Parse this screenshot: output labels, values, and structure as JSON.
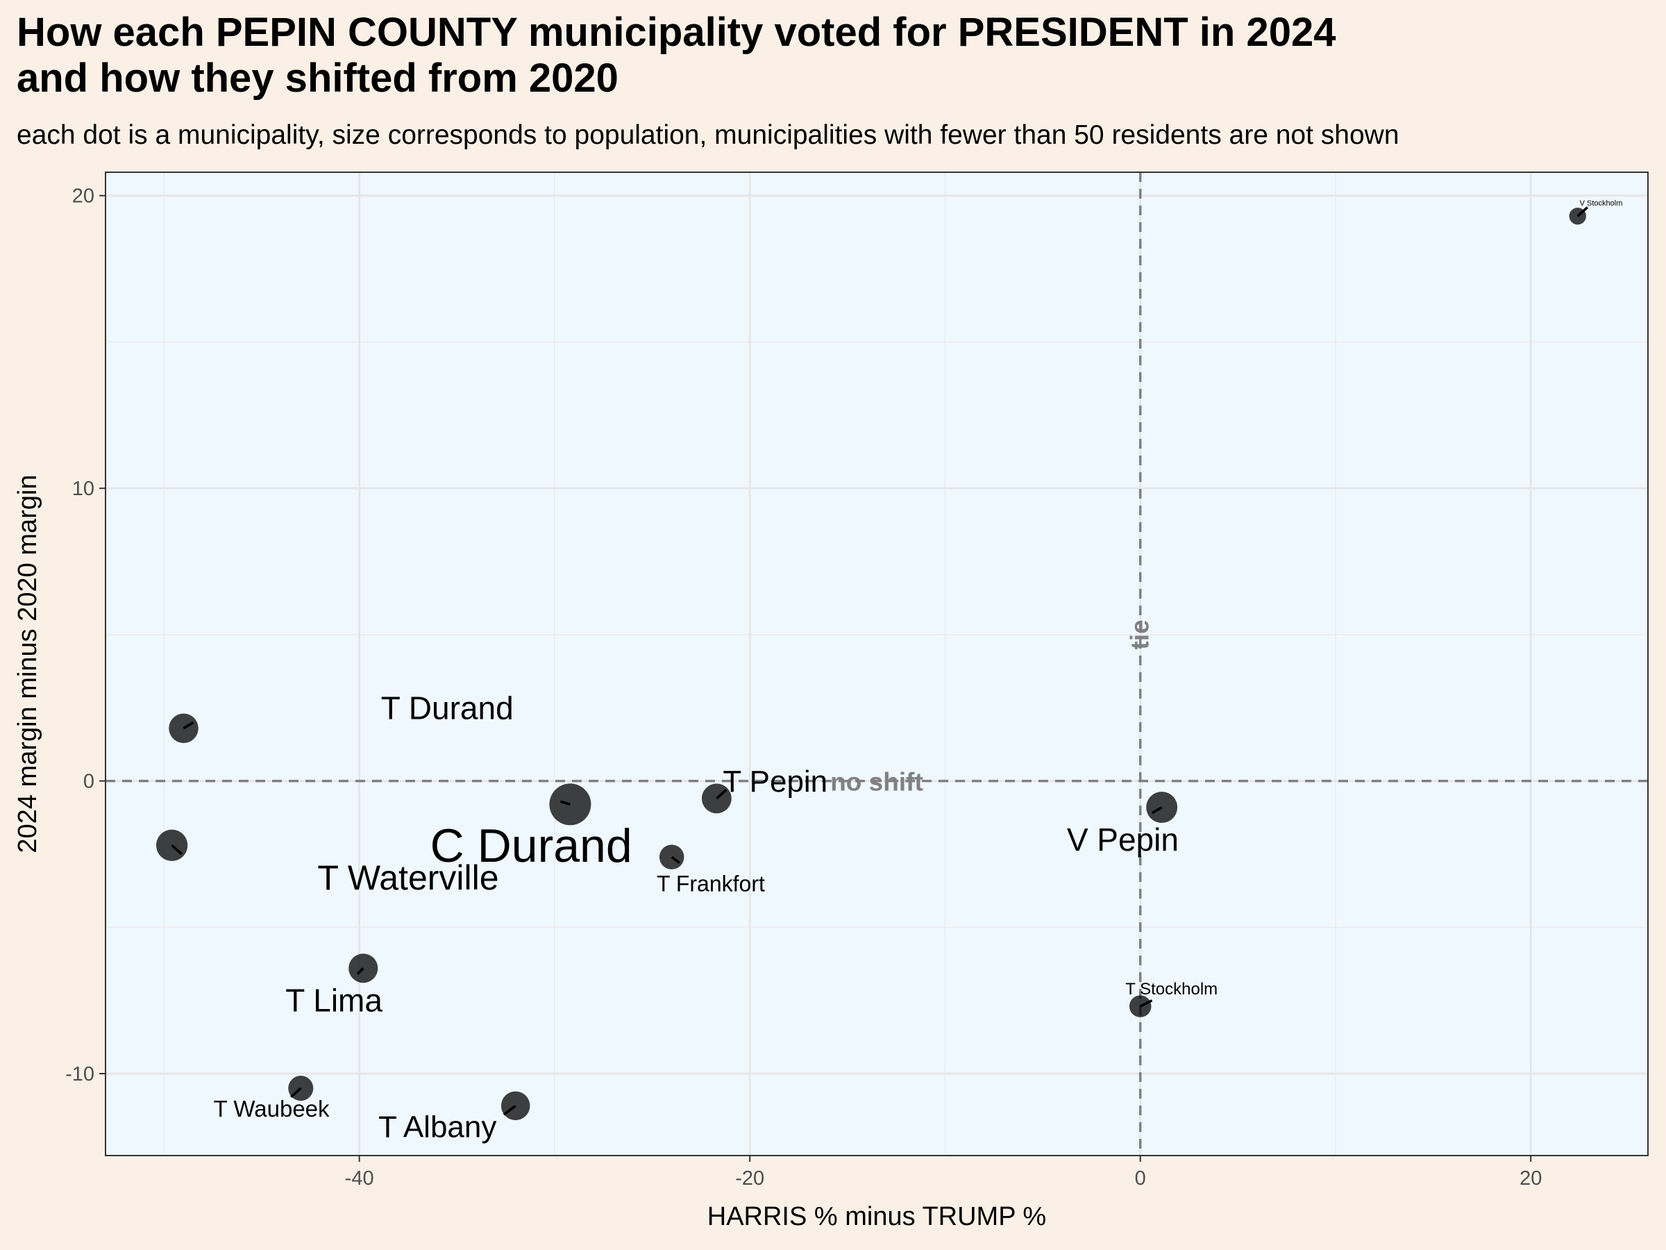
{
  "title": {
    "line1": "How each PEPIN COUNTY municipality voted for PRESIDENT in 2024",
    "line2": "and how they shifted from 2020"
  },
  "subtitle": "each dot is a municipality, size corresponds to population, municipalities with fewer than 50 residents are not shown",
  "chart_data": {
    "type": "scatter",
    "xlabel": "HARRIS % minus TRUMP %",
    "ylabel": "2024 margin minus 2020 margin",
    "xlim": [
      -53,
      26
    ],
    "ylim": [
      -12.8,
      20.8
    ],
    "x_ticks": [
      -40,
      -20,
      0,
      20
    ],
    "y_ticks": [
      -10,
      0,
      10,
      20
    ],
    "x_tick_labels": [
      "-40",
      "-20",
      "0",
      "20"
    ],
    "y_tick_labels": [
      "-10",
      "0",
      "10",
      "20"
    ],
    "grid": true,
    "panel_background": "#f0f8ff",
    "page_background": "#faf0e6",
    "reference_lines": {
      "vertical": {
        "x": 0,
        "label": "tie"
      },
      "horizontal": {
        "y": 0,
        "label": "no shift"
      }
    },
    "points": [
      {
        "name": "T Durand",
        "x": -49.0,
        "y": 1.8,
        "population": 700
      },
      {
        "name": "T Waterville",
        "x": -49.6,
        "y": -2.2,
        "population": 850
      },
      {
        "name": "C Durand",
        "x": -29.2,
        "y": -0.8,
        "population": 1930
      },
      {
        "name": "T Pepin",
        "x": -21.7,
        "y": -0.6,
        "population": 720
      },
      {
        "name": "T Frankfort",
        "x": -24.0,
        "y": -2.6,
        "population": 380
      },
      {
        "name": "T Lima",
        "x": -39.8,
        "y": -6.4,
        "population": 680
      },
      {
        "name": "T Waubeek",
        "x": -43.0,
        "y": -10.5,
        "population": 400
      },
      {
        "name": "T Albany",
        "x": -32.0,
        "y": -11.1,
        "population": 650
      },
      {
        "name": "V Pepin",
        "x": 1.1,
        "y": -0.9,
        "population": 830
      },
      {
        "name": "T Stockholm",
        "x": 0.0,
        "y": -7.7,
        "population": 240
      },
      {
        "name": "V Stockholm",
        "x": 22.4,
        "y": 19.3,
        "population": 70
      }
    ]
  }
}
